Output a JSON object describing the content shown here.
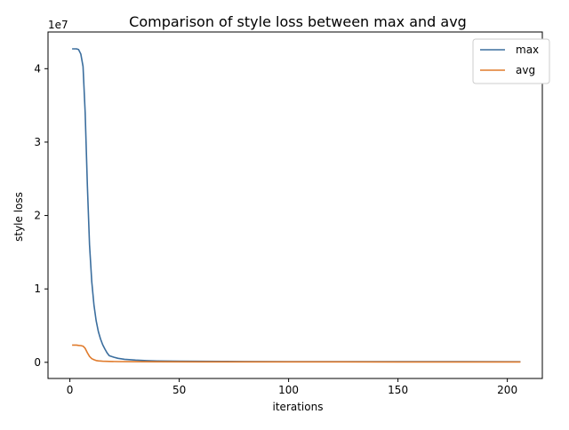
{
  "colors": {
    "max": "#3b6e9e",
    "avg": "#e07b2c",
    "axis": "#000000",
    "background": "#ffffff"
  },
  "chart_data": {
    "type": "line",
    "title": "Comparison of style loss between max and avg",
    "xlabel": "iterations",
    "ylabel": "style loss",
    "y_offset_label": "1e7",
    "xlim": [
      -10,
      216
    ],
    "ylim": [
      -2200000,
      45000000
    ],
    "x_ticks": [
      0,
      50,
      100,
      150,
      200
    ],
    "x_tick_labels": [
      "0",
      "50",
      "100",
      "150",
      "200"
    ],
    "y_ticks": [
      0,
      10000000,
      20000000,
      30000000,
      40000000
    ],
    "y_tick_labels": [
      "0",
      "1",
      "2",
      "3",
      "4"
    ],
    "grid": false,
    "legend_position": "top-right",
    "series": [
      {
        "name": "max",
        "color": "#3b6e9e",
        "x": [
          1,
          2,
          3,
          4,
          5,
          6,
          7,
          8,
          9,
          10,
          11,
          12,
          13,
          14,
          15,
          16,
          17,
          18,
          20,
          22,
          25,
          30,
          35,
          40,
          50,
          60,
          70,
          80,
          100,
          120,
          150,
          180,
          206
        ],
        "y": [
          42700000,
          42700000,
          42700000,
          42600000,
          42000000,
          40300000,
          34000000,
          24000000,
          16000000,
          11000000,
          7800000,
          5700000,
          4200000,
          3200000,
          2400000,
          1800000,
          1300000,
          900000,
          700000,
          550000,
          420000,
          300000,
          230000,
          190000,
          150000,
          130000,
          120000,
          110000,
          100000,
          95000,
          90000,
          85000,
          80000
        ]
      },
      {
        "name": "avg",
        "color": "#e07b2c",
        "x": [
          1,
          2,
          3,
          4,
          5,
          6,
          7,
          8,
          9,
          10,
          11,
          12,
          13,
          15,
          18,
          22,
          30,
          40,
          60,
          100,
          150,
          206
        ],
        "y": [
          2350000,
          2350000,
          2350000,
          2300000,
          2280000,
          2200000,
          1900000,
          1300000,
          800000,
          500000,
          350000,
          250000,
          200000,
          150000,
          120000,
          100000,
          85000,
          75000,
          65000,
          60000,
          55000,
          50000
        ]
      }
    ]
  }
}
